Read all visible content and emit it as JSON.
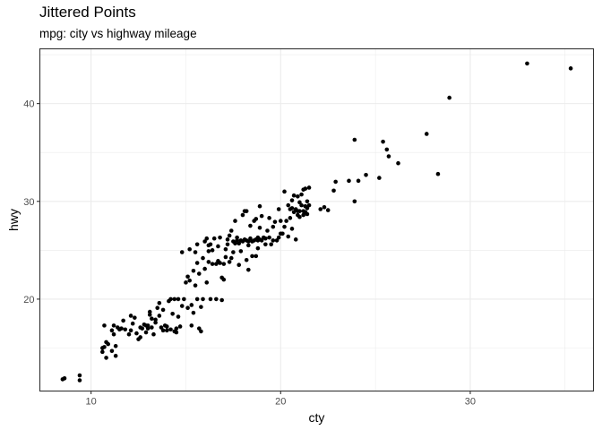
{
  "chart_data": {
    "type": "scatter",
    "title": "Jittered Points",
    "subtitle": "mpg: city vs highway mileage",
    "xlabel": "cty",
    "ylabel": "hwy",
    "xlim": [
      7.3,
      36.5
    ],
    "ylim": [
      10.6,
      45.6
    ],
    "xticks": [
      10,
      20,
      30
    ],
    "yticks": [
      20,
      30,
      40
    ],
    "grid": true,
    "point_color": "#000000",
    "background": "#ffffff",
    "grid_color": "#ebebeb",
    "panel_border_color": "#333333",
    "points": [
      [
        8.5,
        11.8
      ],
      [
        8.6,
        11.9
      ],
      [
        9.4,
        11.7
      ],
      [
        9.4,
        12.2
      ],
      [
        10.6,
        14.6
      ],
      [
        10.7,
        15.1
      ],
      [
        10.8,
        14.0
      ],
      [
        10.8,
        15.6
      ],
      [
        10.9,
        15.4
      ],
      [
        10.7,
        17.3
      ],
      [
        10.6,
        15.0
      ],
      [
        11.1,
        14.7
      ],
      [
        11.1,
        16.8
      ],
      [
        11.2,
        16.4
      ],
      [
        11.3,
        14.2
      ],
      [
        11.3,
        15.2
      ],
      [
        11.4,
        17.1
      ],
      [
        11.5,
        16.9
      ],
      [
        11.7,
        17.8
      ],
      [
        11.8,
        16.9
      ],
      [
        11.2,
        17.3
      ],
      [
        11.6,
        17.0
      ],
      [
        12.0,
        16.4
      ],
      [
        12.1,
        16.8
      ],
      [
        12.1,
        18.3
      ],
      [
        12.3,
        18.1
      ],
      [
        12.2,
        17.5
      ],
      [
        12.4,
        16.5
      ],
      [
        12.5,
        15.9
      ],
      [
        12.6,
        17.1
      ],
      [
        12.7,
        17.0
      ],
      [
        12.8,
        17.4
      ],
      [
        12.9,
        16.6
      ],
      [
        12.9,
        17.3
      ],
      [
        12.6,
        16.1
      ],
      [
        13.0,
        17.3
      ],
      [
        13.1,
        18.4
      ],
      [
        13.2,
        17.1
      ],
      [
        13.2,
        18.0
      ],
      [
        13.3,
        16.4
      ],
      [
        13.4,
        17.9
      ],
      [
        13.5,
        19.1
      ],
      [
        13.6,
        18.3
      ],
      [
        13.6,
        19.6
      ],
      [
        13.7,
        17.1
      ],
      [
        13.8,
        16.8
      ],
      [
        13.9,
        17.3
      ],
      [
        13.1,
        18.7
      ],
      [
        13.4,
        17.6
      ],
      [
        13.8,
        18.9
      ],
      [
        13.0,
        17.0
      ],
      [
        14.0,
        16.8
      ],
      [
        14.0,
        17.2
      ],
      [
        14.1,
        19.8
      ],
      [
        14.2,
        16.9
      ],
      [
        14.3,
        18.5
      ],
      [
        14.4,
        20.0
      ],
      [
        14.4,
        16.7
      ],
      [
        14.5,
        17.0
      ],
      [
        14.6,
        20.0
      ],
      [
        14.6,
        18.2
      ],
      [
        14.7,
        17.2
      ],
      [
        14.8,
        19.3
      ],
      [
        14.9,
        20.0
      ],
      [
        14.8,
        24.8
      ],
      [
        14.2,
        20.0
      ],
      [
        14.5,
        16.6
      ],
      [
        15.0,
        21.7
      ],
      [
        15.1,
        19.1
      ],
      [
        15.1,
        22.3
      ],
      [
        15.2,
        25.1
      ],
      [
        15.3,
        17.3
      ],
      [
        15.3,
        19.4
      ],
      [
        15.4,
        22.9
      ],
      [
        15.5,
        21.4
      ],
      [
        15.5,
        24.8
      ],
      [
        15.6,
        20.0
      ],
      [
        15.6,
        23.7
      ],
      [
        15.6,
        25.6
      ],
      [
        15.7,
        17.0
      ],
      [
        15.8,
        19.2
      ],
      [
        15.9,
        20.0
      ],
      [
        15.9,
        24.2
      ],
      [
        15.2,
        21.9
      ],
      [
        15.4,
        18.6
      ],
      [
        15.7,
        22.6
      ],
      [
        15.8,
        16.7
      ],
      [
        16.0,
        23.1
      ],
      [
        16.0,
        25.9
      ],
      [
        16.1,
        26.2
      ],
      [
        16.2,
        24.9
      ],
      [
        16.2,
        23.8
      ],
      [
        16.3,
        20.0
      ],
      [
        16.3,
        25.6
      ],
      [
        16.4,
        23.6
      ],
      [
        16.5,
        26.2
      ],
      [
        16.6,
        23.6
      ],
      [
        16.7,
        25.4
      ],
      [
        16.8,
        23.7
      ],
      [
        16.9,
        22.2
      ],
      [
        16.9,
        19.9
      ],
      [
        16.1,
        21.7
      ],
      [
        16.4,
        25.0
      ],
      [
        16.6,
        20.0
      ],
      [
        16.7,
        23.9
      ],
      [
        16.2,
        25.5
      ],
      [
        16.8,
        26.3
      ],
      [
        17.0,
        22.0
      ],
      [
        17.0,
        23.6
      ],
      [
        17.1,
        24.3
      ],
      [
        17.2,
        25.6
      ],
      [
        17.3,
        23.8
      ],
      [
        17.3,
        26.5
      ],
      [
        17.4,
        27.0
      ],
      [
        17.4,
        24.2
      ],
      [
        17.5,
        25.9
      ],
      [
        17.6,
        25.7
      ],
      [
        17.6,
        28.0
      ],
      [
        17.7,
        26.0
      ],
      [
        17.8,
        23.5
      ],
      [
        17.8,
        25.7
      ],
      [
        17.9,
        24.9
      ],
      [
        17.9,
        26.0
      ],
      [
        17.1,
        25.1
      ],
      [
        17.5,
        24.8
      ],
      [
        17.7,
        26.3
      ],
      [
        17.2,
        26.1
      ],
      [
        18.0,
        25.9
      ],
      [
        18.0,
        28.6
      ],
      [
        18.1,
        26.1
      ],
      [
        18.1,
        29.0
      ],
      [
        18.2,
        24.0
      ],
      [
        18.2,
        26.0
      ],
      [
        18.3,
        25.5
      ],
      [
        18.3,
        25.9
      ],
      [
        18.4,
        26.2
      ],
      [
        18.4,
        27.5
      ],
      [
        18.5,
        24.4
      ],
      [
        18.5,
        25.9
      ],
      [
        18.6,
        26.0
      ],
      [
        18.6,
        28.0
      ],
      [
        18.7,
        26.1
      ],
      [
        18.7,
        28.2
      ],
      [
        18.8,
        25.2
      ],
      [
        18.8,
        26.0
      ],
      [
        18.9,
        26.1
      ],
      [
        18.9,
        27.3
      ],
      [
        18.9,
        29.5
      ],
      [
        18.3,
        23.0
      ],
      [
        18.7,
        24.4
      ],
      [
        18.2,
        29.0
      ],
      [
        18.8,
        26.3
      ],
      [
        19.0,
        26.0
      ],
      [
        19.0,
        28.5
      ],
      [
        19.1,
        26.3
      ],
      [
        19.2,
        25.6
      ],
      [
        19.3,
        27.0
      ],
      [
        19.4,
        26.3
      ],
      [
        19.4,
        28.3
      ],
      [
        19.5,
        25.6
      ],
      [
        19.6,
        27.4
      ],
      [
        19.7,
        27.9
      ],
      [
        19.8,
        26.0
      ],
      [
        19.9,
        26.3
      ],
      [
        19.9,
        29.2
      ],
      [
        19.2,
        26.2
      ],
      [
        19.6,
        26.0
      ],
      [
        20.0,
        26.7
      ],
      [
        20.0,
        28.0
      ],
      [
        20.1,
        26.7
      ],
      [
        20.2,
        31.0
      ],
      [
        20.2,
        27.4
      ],
      [
        20.3,
        28.0
      ],
      [
        20.4,
        26.4
      ],
      [
        20.5,
        28.3
      ],
      [
        20.5,
        29.2
      ],
      [
        20.6,
        30.1
      ],
      [
        20.6,
        27.2
      ],
      [
        20.7,
        28.9
      ],
      [
        20.7,
        30.6
      ],
      [
        20.8,
        29.2
      ],
      [
        20.8,
        26.1
      ],
      [
        20.9,
        28.6
      ],
      [
        20.9,
        29.0
      ],
      [
        20.9,
        30.5
      ],
      [
        20.4,
        29.6
      ],
      [
        20.6,
        29.3
      ],
      [
        21.0,
        28.4
      ],
      [
        21.0,
        29.0
      ],
      [
        21.1,
        29.6
      ],
      [
        21.1,
        30.7
      ],
      [
        21.2,
        28.6
      ],
      [
        21.2,
        29.0
      ],
      [
        21.3,
        29.5
      ],
      [
        21.3,
        31.3
      ],
      [
        21.4,
        29.3
      ],
      [
        21.4,
        30.0
      ],
      [
        21.5,
        29.6
      ],
      [
        21.5,
        31.4
      ],
      [
        21.2,
        31.2
      ],
      [
        21.3,
        28.9
      ],
      [
        21.0,
        29.9
      ],
      [
        21.4,
        28.7
      ],
      [
        22.1,
        29.2
      ],
      [
        22.3,
        29.4
      ],
      [
        22.5,
        29.1
      ],
      [
        22.9,
        32.0
      ],
      [
        22.8,
        31.1
      ],
      [
        23.6,
        32.1
      ],
      [
        23.9,
        30.0
      ],
      [
        23.9,
        36.3
      ],
      [
        24.1,
        32.1
      ],
      [
        24.5,
        32.7
      ],
      [
        25.2,
        32.4
      ],
      [
        25.4,
        36.1
      ],
      [
        25.6,
        35.3
      ],
      [
        25.7,
        34.6
      ],
      [
        26.2,
        33.9
      ],
      [
        27.7,
        36.9
      ],
      [
        28.3,
        32.8
      ],
      [
        28.9,
        40.6
      ],
      [
        33.0,
        44.1
      ],
      [
        35.3,
        43.6
      ]
    ]
  }
}
